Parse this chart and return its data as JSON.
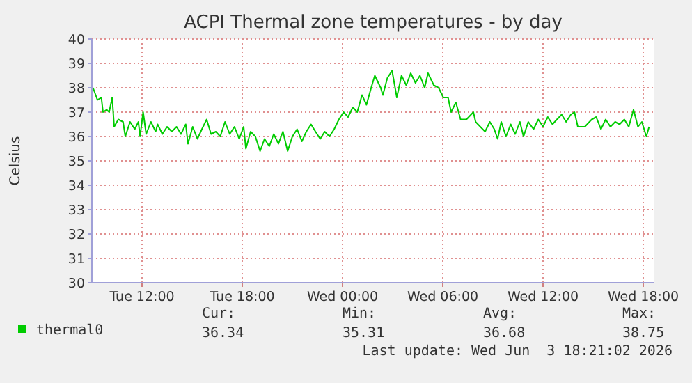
{
  "chart_data": {
    "type": "line",
    "title": "ACPI Thermal zone temperatures - by day",
    "ylabel": "Celsius",
    "xlim": [
      "2026-06-02T09:00",
      "2026-06-03T18:40"
    ],
    "ylim": [
      30,
      40
    ],
    "xticks": [
      {
        "value": "2026-06-02T12:00",
        "label": "Tue 12:00"
      },
      {
        "value": "2026-06-02T18:00",
        "label": "Tue 18:00"
      },
      {
        "value": "2026-06-03T00:00",
        "label": "Wed 00:00"
      },
      {
        "value": "2026-06-03T06:00",
        "label": "Wed 06:00"
      },
      {
        "value": "2026-06-03T12:00",
        "label": "Wed 12:00"
      },
      {
        "value": "2026-06-03T18:00",
        "label": "Wed 18:00"
      }
    ],
    "yticks": [
      30,
      31,
      32,
      33,
      34,
      35,
      36,
      37,
      38,
      39,
      40
    ],
    "grid": true,
    "legend": "bottom left",
    "annotations": [
      "Cur:",
      "36.34",
      "Min:",
      "35.31",
      "Avg:",
      "36.68",
      "Max:",
      "38.75",
      "Last update: Wed Jun  3 18:21:02 2026"
    ],
    "series": [
      {
        "name": "thermal0",
        "color": "#00cc00",
        "x": [
          "2026-06-02T09:04",
          "2026-06-02T09:20",
          "2026-06-02T09:34",
          "2026-06-02T09:40",
          "2026-06-02T09:53",
          "2026-06-02T10:02",
          "2026-06-02T10:13",
          "2026-06-02T10:20",
          "2026-06-02T10:35",
          "2026-06-02T10:52",
          "2026-06-02T11:00",
          "2026-06-02T11:17",
          "2026-06-02T11:34",
          "2026-06-02T11:47",
          "2026-06-02T11:53",
          "2026-06-02T12:04",
          "2026-06-02T12:15",
          "2026-06-02T12:32",
          "2026-06-02T12:49",
          "2026-06-02T12:56",
          "2026-06-02T13:13",
          "2026-06-02T13:30",
          "2026-06-02T13:47",
          "2026-06-02T14:04",
          "2026-06-02T14:20",
          "2026-06-02T14:37",
          "2026-06-02T14:45",
          "2026-06-02T15:02",
          "2026-06-02T15:19",
          "2026-06-02T15:35",
          "2026-06-02T15:52",
          "2026-06-02T16:08",
          "2026-06-02T16:25",
          "2026-06-02T16:41",
          "2026-06-02T16:58",
          "2026-06-02T17:15",
          "2026-06-02T17:32",
          "2026-06-02T17:49",
          "2026-06-02T18:05",
          "2026-06-02T18:13",
          "2026-06-02T18:30",
          "2026-06-02T18:47",
          "2026-06-02T19:04",
          "2026-06-02T19:20",
          "2026-06-02T19:37",
          "2026-06-02T19:53",
          "2026-06-02T20:10",
          "2026-06-02T20:26",
          "2026-06-02T20:43",
          "2026-06-02T21:00",
          "2026-06-02T21:17",
          "2026-06-02T21:34",
          "2026-06-02T21:50",
          "2026-06-02T22:07",
          "2026-06-02T22:23",
          "2026-06-02T22:40",
          "2026-06-02T22:56",
          "2026-06-02T23:13",
          "2026-06-02T23:30",
          "2026-06-02T23:47",
          "2026-06-03T00:04",
          "2026-06-03T00:20",
          "2026-06-03T00:37",
          "2026-06-03T00:53",
          "2026-06-03T01:10",
          "2026-06-03T01:26",
          "2026-06-03T01:43",
          "2026-06-03T01:56",
          "2026-06-03T02:17",
          "2026-06-03T02:25",
          "2026-06-03T02:41",
          "2026-06-03T02:58",
          "2026-06-03T03:15",
          "2026-06-03T03:32",
          "2026-06-03T03:49",
          "2026-06-03T04:05",
          "2026-06-03T04:22",
          "2026-06-03T04:38",
          "2026-06-03T04:55",
          "2026-06-03T05:07",
          "2026-06-03T05:28",
          "2026-06-03T05:45",
          "2026-06-03T06:02",
          "2026-06-03T06:19",
          "2026-06-03T06:30",
          "2026-06-03T06:47",
          "2026-06-03T07:04",
          "2026-06-03T07:25",
          "2026-06-03T07:50",
          "2026-06-03T07:58",
          "2026-06-03T08:15",
          "2026-06-03T08:32",
          "2026-06-03T08:49",
          "2026-06-03T09:05",
          "2026-06-03T09:17",
          "2026-06-03T09:30",
          "2026-06-03T09:47",
          "2026-06-03T10:04",
          "2026-06-03T10:20",
          "2026-06-03T10:37",
          "2026-06-03T10:50",
          "2026-06-03T11:07",
          "2026-06-03T11:26",
          "2026-06-03T11:43",
          "2026-06-03T12:00",
          "2026-06-03T12:17",
          "2026-06-03T12:34",
          "2026-06-03T12:50",
          "2026-06-03T13:07",
          "2026-06-03T13:23",
          "2026-06-03T13:40",
          "2026-06-03T13:53",
          "2026-06-03T14:05",
          "2026-06-03T14:30",
          "2026-06-03T14:55",
          "2026-06-03T15:11",
          "2026-06-03T15:28",
          "2026-06-03T15:45",
          "2026-06-03T16:02",
          "2026-06-03T16:19",
          "2026-06-03T16:35",
          "2026-06-03T16:52",
          "2026-06-03T17:08",
          "2026-06-03T17:25",
          "2026-06-03T17:41",
          "2026-06-03T17:55",
          "2026-06-03T18:11",
          "2026-06-03T18:21"
        ],
        "values": [
          38.0,
          37.5,
          37.6,
          37.0,
          37.1,
          37.0,
          37.6,
          36.4,
          36.7,
          36.6,
          36.0,
          36.6,
          36.3,
          36.6,
          36.0,
          37.0,
          36.1,
          36.6,
          36.2,
          36.5,
          36.1,
          36.4,
          36.2,
          36.4,
          36.1,
          36.5,
          35.7,
          36.4,
          35.9,
          36.3,
          36.7,
          36.1,
          36.2,
          36.0,
          36.6,
          36.1,
          36.4,
          35.9,
          36.4,
          35.5,
          36.2,
          36.0,
          35.4,
          35.9,
          35.6,
          36.1,
          35.7,
          36.2,
          35.4,
          36.0,
          36.3,
          35.8,
          36.2,
          36.5,
          36.2,
          35.9,
          36.2,
          36.0,
          36.3,
          36.7,
          37.0,
          36.8,
          37.2,
          37.0,
          37.7,
          37.3,
          38.0,
          38.5,
          38.0,
          37.7,
          38.4,
          38.7,
          37.6,
          38.5,
          38.1,
          38.6,
          38.2,
          38.5,
          38.0,
          38.6,
          38.1,
          38.0,
          37.6,
          37.6,
          37.0,
          37.4,
          36.7,
          36.7,
          37.0,
          36.6,
          36.4,
          36.2,
          36.6,
          36.3,
          35.9,
          36.6,
          36.0,
          36.5,
          36.1,
          36.6,
          36.0,
          36.6,
          36.3,
          36.7,
          36.4,
          36.8,
          36.5,
          36.7,
          36.9,
          36.6,
          36.9,
          37.0,
          36.4,
          36.4,
          36.7,
          36.8,
          36.3,
          36.7,
          36.4,
          36.6,
          36.5,
          36.7,
          36.4,
          37.1,
          36.4,
          36.6,
          36.0,
          36.4
        ]
      }
    ]
  }
}
